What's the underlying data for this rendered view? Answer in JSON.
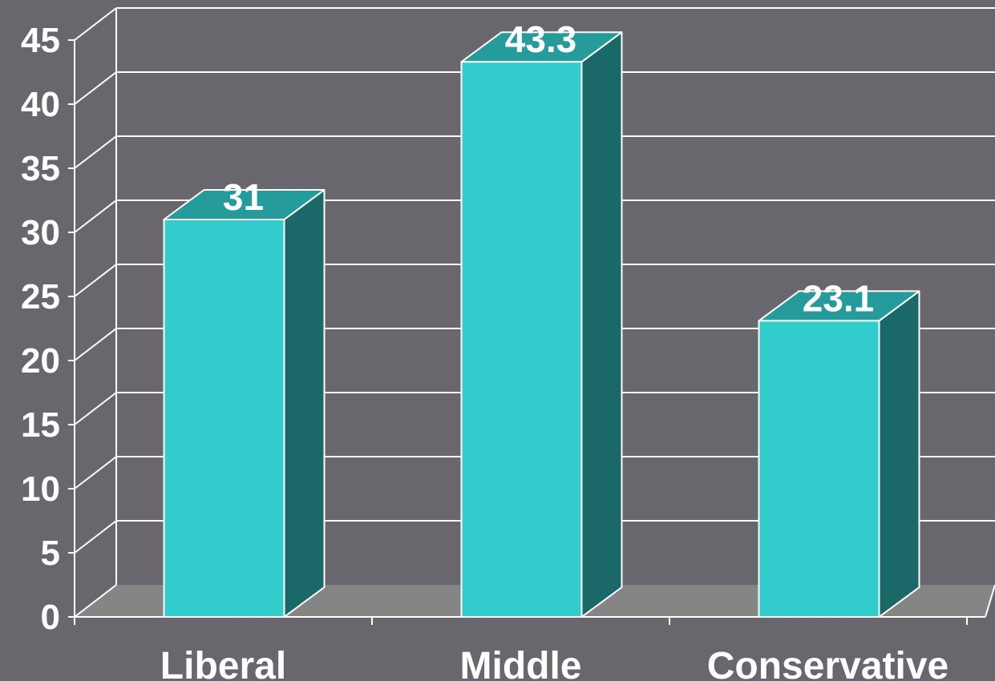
{
  "chart_data": {
    "type": "bar",
    "categories": [
      "Liberal",
      "Middle",
      "Conservative"
    ],
    "values": [
      31,
      43.3,
      23.1
    ],
    "data_labels": [
      "31",
      "43.3",
      "23.1"
    ],
    "title": "",
    "xlabel": "",
    "ylabel": "",
    "ylim": [
      0,
      45
    ],
    "yticks": [
      0,
      5,
      10,
      15,
      20,
      25,
      30,
      35,
      40,
      45
    ],
    "grid": true,
    "legend": "none",
    "style": "3d-column"
  },
  "colors": {
    "background": "#69676d",
    "bar_front": "#33cccc",
    "bar_top": "#269b9b",
    "bar_side": "#1b6868",
    "floor": "#858585",
    "grid": "#ffffff",
    "text": "#ffffff"
  }
}
